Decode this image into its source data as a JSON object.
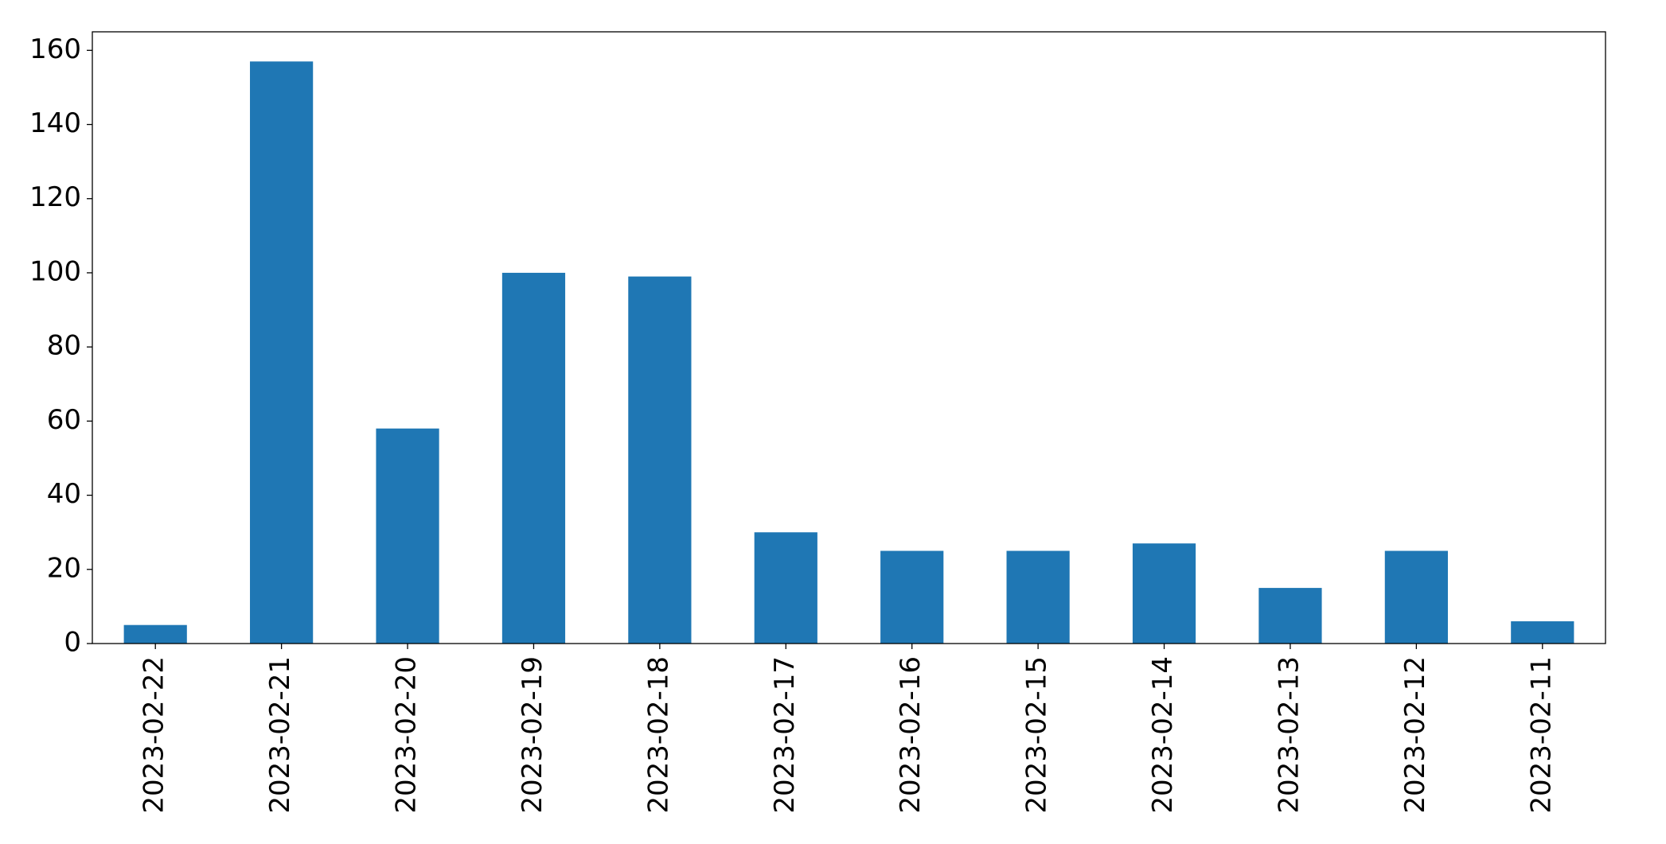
{
  "chart_data": {
    "type": "bar",
    "categories": [
      "2023-02-22",
      "2023-02-21",
      "2023-02-20",
      "2023-02-19",
      "2023-02-18",
      "2023-02-17",
      "2023-02-16",
      "2023-02-15",
      "2023-02-14",
      "2023-02-13",
      "2023-02-12",
      "2023-02-11"
    ],
    "values": [
      5,
      157,
      58,
      100,
      99,
      30,
      25,
      25,
      27,
      15,
      25,
      6
    ],
    "color": "#1f77b4",
    "ylim": [
      0,
      165
    ],
    "yticks": [
      0,
      20,
      40,
      60,
      80,
      100,
      120,
      140,
      160
    ],
    "grid": false
  }
}
